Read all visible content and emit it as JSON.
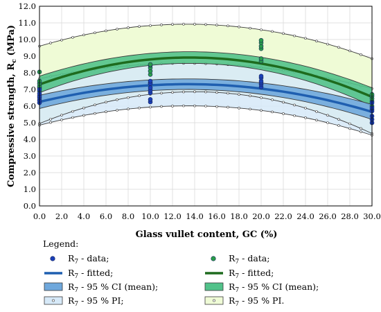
{
  "chart_data": {
    "type": "scatter",
    "xlabel": "Glass vullet content, GC (%)",
    "ylabel": "Compressive strength, R",
    "ylabel_sub": "c",
    "ylabel_unit": " (MPa)",
    "xlim": [
      0,
      30
    ],
    "ylim": [
      0,
      12
    ],
    "x_ticks": [
      "0.0",
      "2.0",
      "4.0",
      "6.0",
      "8.0",
      "10.0",
      "12.0",
      "14.0",
      "16.0",
      "18.0",
      "20.0",
      "22.0",
      "24.0",
      "26.0",
      "28.0",
      "30.0"
    ],
    "y_ticks": [
      "0.0",
      "1.0",
      "2.0",
      "3.0",
      "4.0",
      "5.0",
      "6.0",
      "7.0",
      "8.0",
      "9.0",
      "10.0",
      "11.0",
      "12.0"
    ],
    "grid": true,
    "colors": {
      "blue_fit": "#1f5fb0",
      "blue_point": "#1a3fb8",
      "blue_ci": "#6fa8dc",
      "blue_pi": "#d6e9f8",
      "green_fit": "#1e6b1e",
      "green_point": "#2a9d4a",
      "green_ci": "#52c28a",
      "green_pi": "#effbd6"
    },
    "series": [
      {
        "group": "blue",
        "data": [
          [
            0,
            6.2
          ],
          [
            0,
            6.35
          ],
          [
            0,
            6.5
          ],
          [
            0,
            6.6
          ],
          [
            0,
            6.75
          ],
          [
            0,
            7.0
          ],
          [
            10,
            6.25
          ],
          [
            10,
            6.4
          ],
          [
            10,
            6.8
          ],
          [
            10,
            6.95
          ],
          [
            10,
            7.1
          ],
          [
            10,
            7.35
          ],
          [
            10,
            7.5
          ],
          [
            20,
            7.15
          ],
          [
            20,
            7.3
          ],
          [
            20,
            7.4
          ],
          [
            20,
            7.5
          ],
          [
            20,
            7.7
          ],
          [
            20,
            7.8
          ],
          [
            30,
            5.0
          ],
          [
            30,
            5.2
          ],
          [
            30,
            5.4
          ],
          [
            30,
            5.7
          ],
          [
            30,
            5.9
          ],
          [
            30,
            6.2
          ]
        ],
        "fit": [
          6.25,
          7.3,
          5.65
        ],
        "ci_lower": [
          5.85,
          6.98,
          5.2
        ],
        "ci_upper": [
          6.65,
          7.62,
          6.1
        ],
        "pi_lower": [
          4.85,
          6.0,
          4.25
        ],
        "pi_upper": [
          7.65,
          8.55,
          7.05
        ]
      },
      {
        "group": "green",
        "data": [
          [
            0,
            6.9
          ],
          [
            0,
            7.1
          ],
          [
            0,
            7.2
          ],
          [
            0,
            7.35
          ],
          [
            0,
            7.5
          ],
          [
            0,
            8.05
          ],
          [
            10,
            7.4
          ],
          [
            10,
            7.9
          ],
          [
            10,
            8.1
          ],
          [
            10,
            8.3
          ],
          [
            10,
            8.45
          ],
          [
            10,
            8.5
          ],
          [
            20,
            8.7
          ],
          [
            20,
            8.85
          ],
          [
            20,
            9.45
          ],
          [
            20,
            9.6
          ],
          [
            20,
            9.8
          ],
          [
            20,
            9.95
          ],
          [
            30,
            5.8
          ],
          [
            30,
            6.0
          ],
          [
            30,
            6.3
          ],
          [
            30,
            6.45
          ],
          [
            30,
            6.6
          ],
          [
            30,
            6.7
          ]
        ],
        "fit": [
          7.3,
          8.9,
          6.55
        ],
        "ci_lower": [
          6.8,
          8.55,
          6.0
        ],
        "ci_upper": [
          7.8,
          9.25,
          7.1
        ],
        "pi_lower": [
          4.95,
          6.85,
          4.35
        ],
        "pi_upper": [
          9.6,
          10.9,
          8.85
        ]
      }
    ],
    "legend": {
      "title": "Legend:",
      "sub": "7",
      "items": [
        {
          "label": " - data;",
          "group": "blue",
          "kind": "point"
        },
        {
          "label": " - data;",
          "group": "green",
          "kind": "point"
        },
        {
          "label": " - fitted;",
          "group": "blue",
          "kind": "fit"
        },
        {
          "label": " - fitted;",
          "group": "green",
          "kind": "fit"
        },
        {
          "label": " - 95 % CI (mean);",
          "group": "blue",
          "kind": "ci"
        },
        {
          "label": " - 95 % CI (mean);",
          "group": "green",
          "kind": "ci"
        },
        {
          "label": " - 95 % PI;",
          "group": "blue",
          "kind": "pi"
        },
        {
          "label": " - 95 % PI.",
          "group": "green",
          "kind": "pi"
        }
      ]
    }
  }
}
